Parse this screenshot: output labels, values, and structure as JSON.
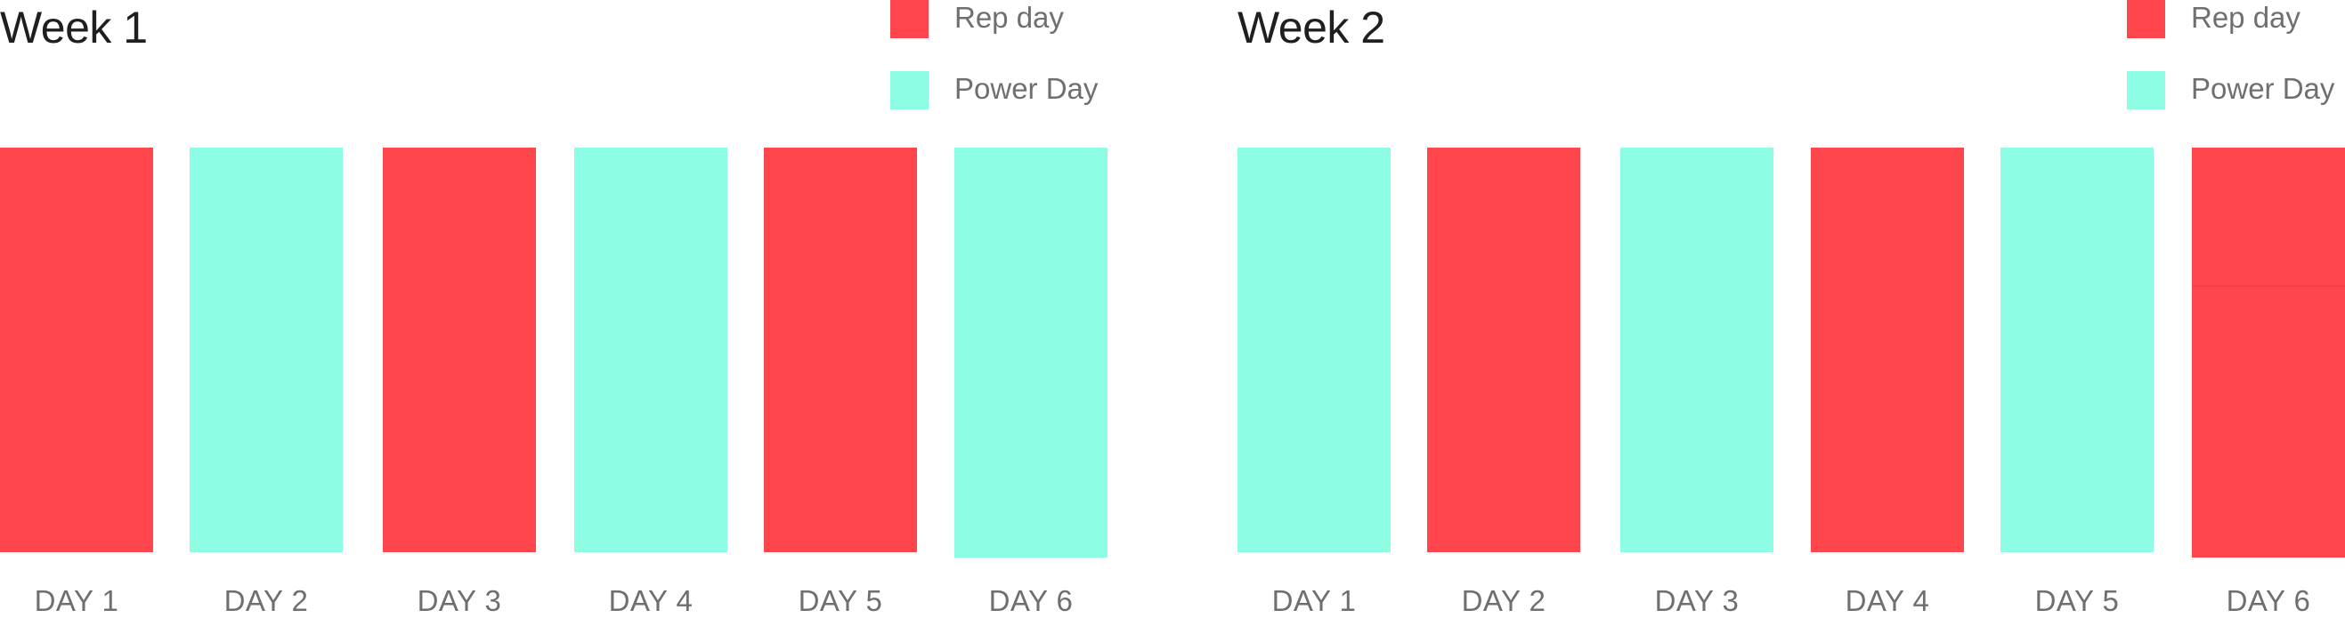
{
  "colors": {
    "rep": "#ff464d",
    "power": "#8dfde3"
  },
  "legend": {
    "rep_label": "Rep day",
    "power_label": "Power Day"
  },
  "weeks": [
    {
      "title": "Week 1",
      "days": [
        {
          "label": "DAY 1",
          "type": "rep"
        },
        {
          "label": "DAY 2",
          "type": "power"
        },
        {
          "label": "DAY 3",
          "type": "rep"
        },
        {
          "label": "DAY 4",
          "type": "power"
        },
        {
          "label": "DAY 5",
          "type": "rep"
        },
        {
          "label": "DAY 6",
          "type": "power"
        }
      ]
    },
    {
      "title": "Week 2",
      "days": [
        {
          "label": "DAY 1",
          "type": "power"
        },
        {
          "label": "DAY 2",
          "type": "rep"
        },
        {
          "label": "DAY 3",
          "type": "power"
        },
        {
          "label": "DAY 4",
          "type": "rep"
        },
        {
          "label": "DAY 5",
          "type": "power"
        },
        {
          "label": "DAY 6",
          "type": "rep"
        }
      ]
    }
  ]
}
